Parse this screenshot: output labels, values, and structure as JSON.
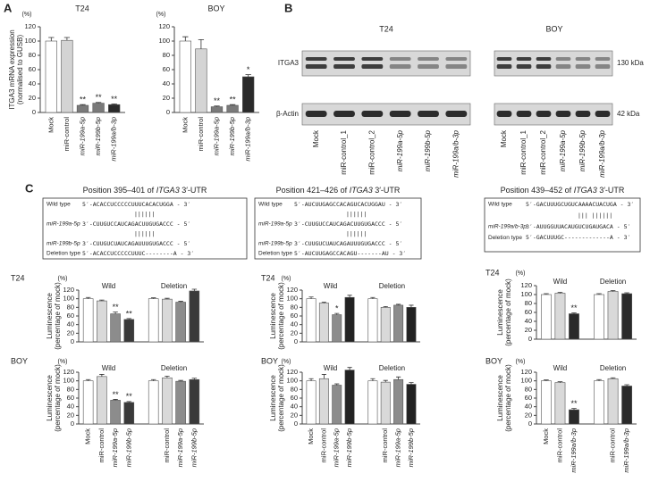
{
  "panel_labels": [
    "A",
    "B",
    "C"
  ],
  "chart_data": [
    {
      "type": "bar",
      "title": "T24",
      "y_unit": "(%)",
      "y_label": [
        "ITGA3 mRNA expression",
        "(normalised to GUSB)"
      ],
      "categories": [
        "Mock",
        "miR-control",
        "miR-199a-5p",
        "miR-199b-5p",
        "miR-199a/b-3p"
      ],
      "values": [
        100,
        101,
        10,
        13,
        11
      ],
      "errors": [
        5,
        4,
        1,
        1,
        1
      ],
      "annotations": [
        null,
        null,
        "**",
        "**",
        "**"
      ],
      "colors": [
        "#ffffff",
        "#d4d4d4",
        "#7a7a7a",
        "#7a7a7a",
        "#2a2a2a"
      ],
      "ylim": [
        0,
        120
      ],
      "yticks": [
        0,
        20,
        40,
        60,
        80,
        100,
        120
      ]
    },
    {
      "type": "bar",
      "title": "BOY",
      "y_unit": "(%)",
      "categories": [
        "Mock",
        "miR-control",
        "miR-199a-5p",
        "miR-199b-5p",
        "miR-199a/b-3p"
      ],
      "values": [
        100,
        89,
        8,
        10,
        50
      ],
      "errors": [
        6,
        13,
        1,
        1,
        3
      ],
      "annotations": [
        null,
        null,
        "**",
        "**",
        "*"
      ],
      "colors": [
        "#ffffff",
        "#d4d4d4",
        "#7a7a7a",
        "#7a7a7a",
        "#2a2a2a"
      ],
      "ylim": [
        0,
        120
      ],
      "yticks": [
        0,
        20,
        40,
        60,
        80,
        100,
        120
      ]
    },
    {
      "type": "bar",
      "title": "T24",
      "y_unit": "(%)",
      "y_label": [
        "Luminescence",
        "(percentage of mock)"
      ],
      "groups": [
        "Wild",
        "Deletion"
      ],
      "categories": [
        "Mock",
        "miR-control",
        "miR-199a-5p",
        "miR-199b-5p",
        null,
        "miR-control",
        "miR-199a-5p",
        "miR-199b-5p"
      ],
      "values": [
        100,
        95,
        65,
        52,
        100,
        99,
        92,
        118
      ],
      "errors": [
        3,
        2,
        4,
        2,
        2,
        2,
        2,
        4
      ],
      "annotations": [
        null,
        null,
        "**",
        "**",
        null,
        null,
        null,
        null
      ],
      "colors": [
        "#ffffff",
        "#d9d9d9",
        "#8c8c8c",
        "#3a3a3a",
        "#ffffff",
        "#d9d9d9",
        "#8c8c8c",
        "#3a3a3a"
      ],
      "ylim": [
        0,
        120
      ],
      "yticks": [
        0,
        20,
        40,
        60,
        80,
        100,
        120
      ]
    },
    {
      "type": "bar",
      "title": "BOY",
      "y_unit": "(%)",
      "y_label": [
        "Luminescence",
        "(percentage of mock)"
      ],
      "groups": [
        "Wild",
        "Deletion"
      ],
      "categories": [
        "Mock",
        "miR-control",
        "miR-199a-5p",
        "miR-199b-5p",
        null,
        "miR-control",
        "miR-199a-5p",
        "miR-199b-5p"
      ],
      "values": [
        100,
        110,
        55,
        50,
        100,
        107,
        99,
        103
      ],
      "errors": [
        3,
        5,
        2,
        2,
        3,
        4,
        2,
        3
      ],
      "annotations": [
        null,
        null,
        "**",
        "**",
        null,
        null,
        null,
        null
      ],
      "colors": [
        "#ffffff",
        "#d9d9d9",
        "#8c8c8c",
        "#3a3a3a",
        "#ffffff",
        "#d9d9d9",
        "#8c8c8c",
        "#3a3a3a"
      ],
      "ylim": [
        0,
        120
      ],
      "yticks": [
        0,
        20,
        40,
        60,
        80,
        100,
        120
      ]
    },
    {
      "type": "bar",
      "title": "T24",
      "y_unit": "(%)",
      "y_label": [
        "Luminescence",
        "(percentage of mock)"
      ],
      "groups": [
        "Wild",
        "Deletion"
      ],
      "categories": [
        "Mock",
        "miR-control",
        "miR-199a-5p",
        "miR-199b-5p",
        null,
        "miR-control",
        "miR-199a-5p",
        "miR-199b-5p"
      ],
      "values": [
        100,
        90,
        63,
        103,
        100,
        80,
        85,
        80
      ],
      "errors": [
        4,
        2,
        3,
        5,
        3,
        2,
        2,
        5
      ],
      "annotations": [
        null,
        null,
        "*",
        null,
        null,
        null,
        null,
        null
      ],
      "colors": [
        "#ffffff",
        "#d9d9d9",
        "#8c8c8c",
        "#222222",
        "#ffffff",
        "#d9d9d9",
        "#8c8c8c",
        "#222222"
      ],
      "ylim": [
        0,
        120
      ],
      "yticks": [
        0,
        20,
        40,
        60,
        80,
        100,
        120
      ]
    },
    {
      "type": "bar",
      "title": "BOY",
      "y_unit": "(%)",
      "y_label": [
        "Luminescence",
        "(percentage of mock)"
      ],
      "groups": [
        "Wild",
        "Deletion"
      ],
      "categories": [
        "Mock",
        "miR-control",
        "miR-199a-5p",
        "miR-199b-5p",
        null,
        "miR-control",
        "miR-199a-5p",
        "miR-199b-5p"
      ],
      "values": [
        100,
        105,
        90,
        125,
        100,
        97,
        103,
        92
      ],
      "errors": [
        5,
        10,
        3,
        6,
        5,
        4,
        6,
        4
      ],
      "annotations": [
        null,
        null,
        null,
        null,
        null,
        null,
        null,
        null
      ],
      "colors": [
        "#ffffff",
        "#d9d9d9",
        "#8c8c8c",
        "#222222",
        "#ffffff",
        "#d9d9d9",
        "#8c8c8c",
        "#222222"
      ],
      "ylim": [
        0,
        120
      ],
      "yticks": [
        0,
        20,
        40,
        60,
        80,
        100,
        120
      ]
    },
    {
      "type": "bar",
      "title": "T24",
      "y_unit": "(%)",
      "y_label": [
        "Luminescence",
        "(percentage of mock)"
      ],
      "groups": [
        "Wild",
        "Deletion"
      ],
      "categories": [
        "Mock",
        "miR-control",
        "miR-199a/b-3p",
        null,
        "miR-control",
        "miR-199a/b-3p"
      ],
      "values": [
        100,
        103,
        57,
        100,
        107,
        102
      ],
      "errors": [
        2,
        2,
        2,
        2,
        2,
        2
      ],
      "annotations": [
        null,
        null,
        "**",
        null,
        null,
        null
      ],
      "colors": [
        "#ffffff",
        "#d9d9d9",
        "#2a2a2a",
        "#ffffff",
        "#d9d9d9",
        "#2a2a2a"
      ],
      "ylim": [
        0,
        120
      ],
      "yticks": [
        0,
        20,
        40,
        60,
        80,
        100,
        120
      ]
    },
    {
      "type": "bar",
      "title": "BOY",
      "y_unit": "(%)",
      "y_label": [
        "Luminescence",
        "(percentage of mock)"
      ],
      "groups": [
        "Wild",
        "Deletion"
      ],
      "categories": [
        "Mock",
        "miR-control",
        "miR-199a/b-3p",
        null,
        "miR-control",
        "miR-199a/b-3p"
      ],
      "values": [
        100,
        96,
        33,
        100,
        105,
        88
      ],
      "errors": [
        2,
        2,
        3,
        3,
        2,
        3
      ],
      "annotations": [
        null,
        null,
        "**",
        null,
        null,
        null
      ],
      "colors": [
        "#ffffff",
        "#d9d9d9",
        "#2a2a2a",
        "#ffffff",
        "#d9d9d9",
        "#2a2a2a"
      ],
      "ylim": [
        0,
        120
      ],
      "yticks": [
        0,
        20,
        40,
        60,
        80,
        100,
        120
      ]
    }
  ],
  "blot": {
    "titles": [
      "T24",
      "BOY"
    ],
    "rows": [
      "ITGA3",
      "β-Actin"
    ],
    "sizes": [
      "130 kDa",
      "42 kDa"
    ],
    "lanes": [
      "Mock",
      "miR-control_1",
      "miR-control_2",
      "miR-199a-5p",
      "miR-199b-5p",
      "miR-199a/b-3p"
    ]
  },
  "utr": [
    {
      "title": {
        "pre": "Position 395–401 of ",
        "gene": "ITGA3",
        "post": " 3′-UTR"
      },
      "rows": [
        {
          "label": "Wild type",
          "seq": "5′-ACACCUCCCCCUUUCACACUGGA - 3′"
        },
        {
          "seq": "||||||"
        },
        {
          "label": "miR-199a-5p",
          "seq": "3′-CUUGUCCAUCAGACUUGUGACCC - 5′"
        },
        {
          "seq": "||||||"
        },
        {
          "label": "miR-199b-5p",
          "seq": "3′-CUUGUCUAUCAGAUUUGUGACCC - 5′"
        },
        {
          "label": "Deletion type",
          "seq": "5′-ACACCUCCCCCUUUC--------A - 3′"
        }
      ]
    },
    {
      "title": {
        "pre": "Position 421–426 of ",
        "gene": "ITGA3",
        "post": " 3′-UTR"
      },
      "rows": [
        {
          "label": "Wild type",
          "seq": "5′-AUCUUGAGCCACAGUCACUGGAU - 3′"
        },
        {
          "seq": "||||||"
        },
        {
          "label": "miR-199a-5p",
          "seq": "3′-CUUGUCCAUCAGACUUGUGACCC - 5′"
        },
        {
          "seq": "||||||"
        },
        {
          "label": "miR-199b-5p",
          "seq": "3′-CUUGUCUAUCAGAUUUGUGACCC - 5′"
        },
        {
          "label": "Deletion type",
          "seq": "5′-AUCUUGAGCCACAGU-------AU - 3′"
        }
      ]
    },
    {
      "title": {
        "pre": "Position 439–452 of ",
        "gene": "ITGA3",
        "post": " 3′-UTR"
      },
      "rows": [
        {
          "label": "Wild type",
          "seq": "5′-GACUUUGCUGUCAAAACUACUGA - 3′"
        },
        {
          "seq": "|||  ||||||"
        },
        {
          "label": "miR-199a/b-3p",
          "seq": "3′-AUUGGUUACAUGUCUGAUGACA - 5′"
        },
        {
          "label": "Deletion type",
          "seq": "5′-GACUUUGC-------------A - 3′"
        }
      ]
    }
  ]
}
